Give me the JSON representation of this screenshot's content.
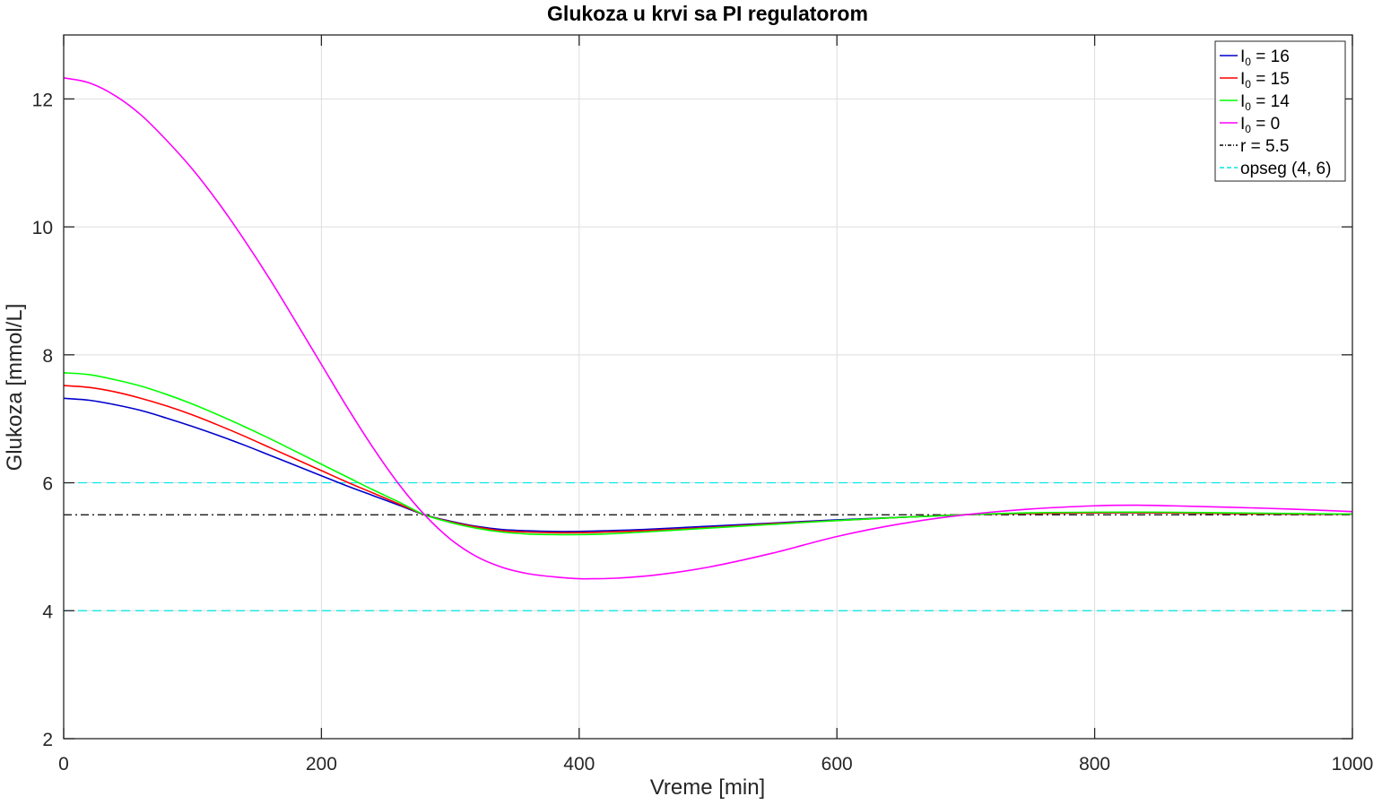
{
  "chart_data": {
    "type": "line",
    "title": "Glukoza u krvi sa PI regulatorom",
    "xlabel": "Vreme [min]",
    "ylabel": "Glukoza [mmol/L]",
    "xlim": [
      0,
      1000
    ],
    "ylim": [
      2,
      13
    ],
    "xticks": [
      0,
      200,
      400,
      600,
      800,
      1000
    ],
    "yticks": [
      2,
      4,
      6,
      8,
      10,
      12
    ],
    "grid": true,
    "legend_position": "top-right",
    "series": [
      {
        "name_base": "I",
        "name_sub": "0",
        "name_rest": " = 16",
        "color": "#0000cc",
        "style": "solid",
        "points": [
          [
            0,
            7.32
          ],
          [
            20,
            7.29
          ],
          [
            40,
            7.22
          ],
          [
            60,
            7.13
          ],
          [
            80,
            7.01
          ],
          [
            100,
            6.88
          ],
          [
            120,
            6.74
          ],
          [
            140,
            6.59
          ],
          [
            160,
            6.43
          ],
          [
            180,
            6.27
          ],
          [
            200,
            6.11
          ],
          [
            220,
            5.95
          ],
          [
            240,
            5.8
          ],
          [
            260,
            5.65
          ],
          [
            280,
            5.5
          ],
          [
            300,
            5.4
          ],
          [
            320,
            5.32
          ],
          [
            340,
            5.27
          ],
          [
            360,
            5.25
          ],
          [
            380,
            5.24
          ],
          [
            400,
            5.24
          ],
          [
            420,
            5.25
          ],
          [
            450,
            5.27
          ],
          [
            500,
            5.32
          ],
          [
            550,
            5.37
          ],
          [
            600,
            5.42
          ],
          [
            650,
            5.46
          ],
          [
            700,
            5.5
          ],
          [
            750,
            5.52
          ],
          [
            800,
            5.53
          ],
          [
            850,
            5.53
          ],
          [
            900,
            5.52
          ],
          [
            950,
            5.51
          ],
          [
            1000,
            5.51
          ]
        ]
      },
      {
        "name_base": "I",
        "name_sub": "0",
        "name_rest": " = 15",
        "color": "#ff0000",
        "style": "solid",
        "points": [
          [
            0,
            7.52
          ],
          [
            20,
            7.49
          ],
          [
            40,
            7.42
          ],
          [
            60,
            7.32
          ],
          [
            80,
            7.2
          ],
          [
            100,
            7.06
          ],
          [
            120,
            6.9
          ],
          [
            140,
            6.73
          ],
          [
            160,
            6.55
          ],
          [
            180,
            6.37
          ],
          [
            200,
            6.19
          ],
          [
            220,
            6.01
          ],
          [
            240,
            5.84
          ],
          [
            260,
            5.67
          ],
          [
            280,
            5.5
          ],
          [
            300,
            5.39
          ],
          [
            320,
            5.31
          ],
          [
            340,
            5.25
          ],
          [
            360,
            5.23
          ],
          [
            380,
            5.22
          ],
          [
            400,
            5.22
          ],
          [
            420,
            5.23
          ],
          [
            450,
            5.25
          ],
          [
            500,
            5.3
          ],
          [
            550,
            5.36
          ],
          [
            600,
            5.41
          ],
          [
            650,
            5.46
          ],
          [
            700,
            5.5
          ],
          [
            750,
            5.52
          ],
          [
            800,
            5.53
          ],
          [
            850,
            5.53
          ],
          [
            900,
            5.52
          ],
          [
            950,
            5.51
          ],
          [
            1000,
            5.51
          ]
        ]
      },
      {
        "name_base": "I",
        "name_sub": "0",
        "name_rest": " = 14",
        "color": "#00ff00",
        "style": "solid",
        "points": [
          [
            0,
            7.72
          ],
          [
            20,
            7.69
          ],
          [
            40,
            7.61
          ],
          [
            60,
            7.51
          ],
          [
            80,
            7.38
          ],
          [
            100,
            7.23
          ],
          [
            120,
            7.06
          ],
          [
            140,
            6.88
          ],
          [
            160,
            6.69
          ],
          [
            180,
            6.49
          ],
          [
            200,
            6.29
          ],
          [
            220,
            6.09
          ],
          [
            240,
            5.89
          ],
          [
            260,
            5.7
          ],
          [
            280,
            5.5
          ],
          [
            300,
            5.38
          ],
          [
            320,
            5.29
          ],
          [
            340,
            5.23
          ],
          [
            360,
            5.2
          ],
          [
            380,
            5.19
          ],
          [
            400,
            5.19
          ],
          [
            420,
            5.2
          ],
          [
            450,
            5.23
          ],
          [
            500,
            5.29
          ],
          [
            550,
            5.35
          ],
          [
            600,
            5.41
          ],
          [
            650,
            5.46
          ],
          [
            700,
            5.5
          ],
          [
            750,
            5.53
          ],
          [
            800,
            5.54
          ],
          [
            850,
            5.54
          ],
          [
            900,
            5.53
          ],
          [
            950,
            5.52
          ],
          [
            1000,
            5.51
          ]
        ]
      },
      {
        "name_base": "I",
        "name_sub": "0",
        "name_rest": " = 0",
        "color": "#ff00ff",
        "style": "solid",
        "points": [
          [
            0,
            12.33
          ],
          [
            20,
            12.25
          ],
          [
            40,
            12.05
          ],
          [
            60,
            11.75
          ],
          [
            80,
            11.35
          ],
          [
            100,
            10.9
          ],
          [
            120,
            10.38
          ],
          [
            140,
            9.8
          ],
          [
            160,
            9.18
          ],
          [
            180,
            8.52
          ],
          [
            200,
            7.85
          ],
          [
            220,
            7.18
          ],
          [
            240,
            6.55
          ],
          [
            260,
            5.98
          ],
          [
            280,
            5.5
          ],
          [
            300,
            5.12
          ],
          [
            320,
            4.85
          ],
          [
            340,
            4.68
          ],
          [
            360,
            4.58
          ],
          [
            380,
            4.53
          ],
          [
            400,
            4.5
          ],
          [
            410,
            4.5
          ],
          [
            430,
            4.51
          ],
          [
            460,
            4.56
          ],
          [
            500,
            4.68
          ],
          [
            550,
            4.9
          ],
          [
            600,
            5.16
          ],
          [
            650,
            5.36
          ],
          [
            700,
            5.5
          ],
          [
            750,
            5.59
          ],
          [
            800,
            5.64
          ],
          [
            830,
            5.65
          ],
          [
            860,
            5.64
          ],
          [
            900,
            5.62
          ],
          [
            950,
            5.59
          ],
          [
            1000,
            5.55
          ]
        ]
      }
    ],
    "reference_lines": [
      {
        "name": "r = 5.5",
        "y": 5.5,
        "color": "#000000",
        "style": "dashdot"
      },
      {
        "name": "opseg (4, 6)",
        "y": [
          4,
          6
        ],
        "color": "#00e5e5",
        "style": "dashed"
      }
    ]
  }
}
